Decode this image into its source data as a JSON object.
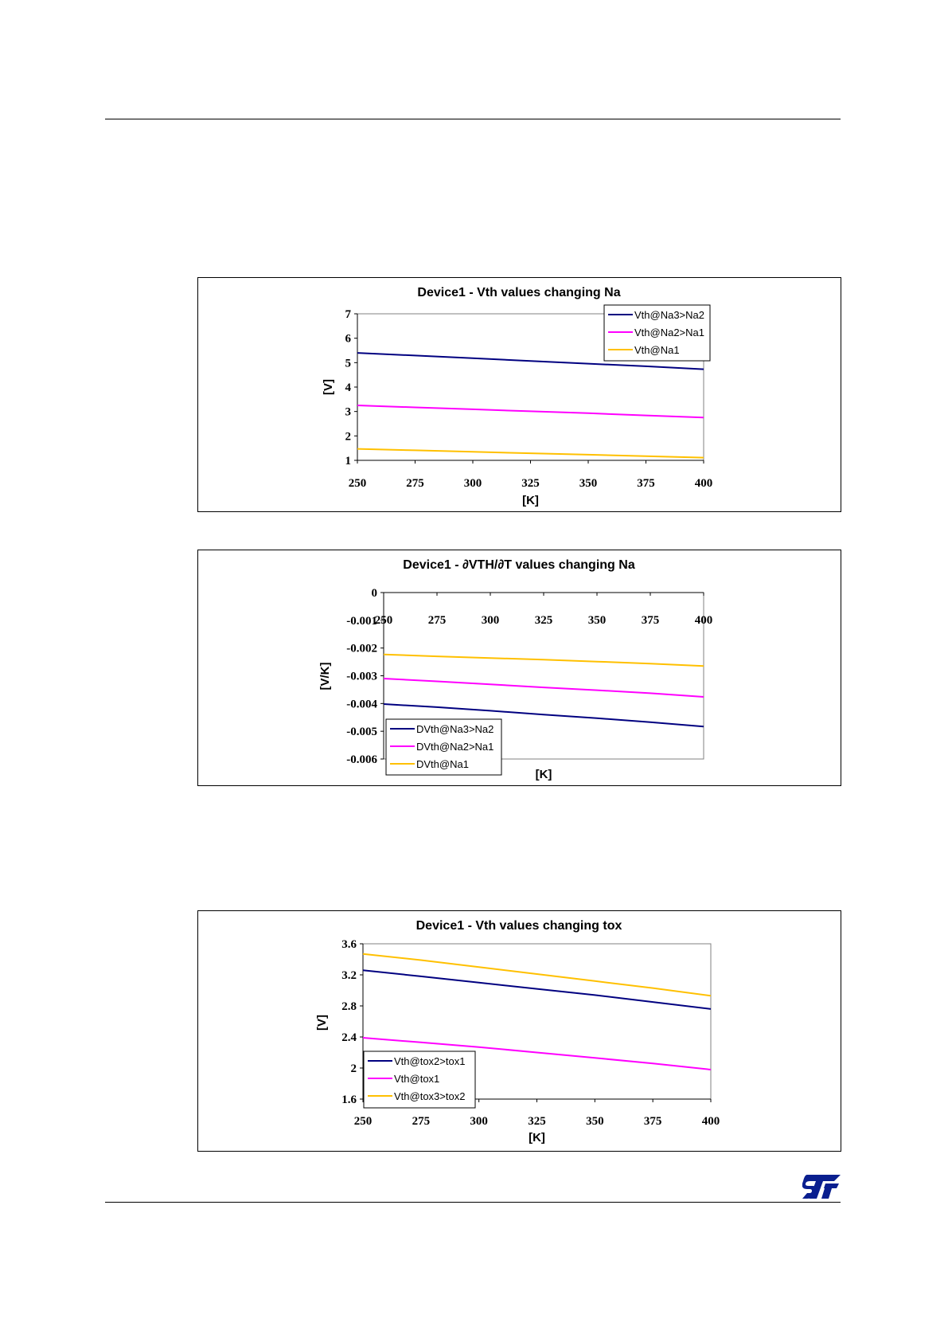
{
  "logo": {
    "name": "st-logo",
    "color": "#0a1f8f"
  },
  "colors": {
    "navy": "#000080",
    "magenta": "#ff00ff",
    "yellow": "#ffc000"
  },
  "chart_data": [
    {
      "type": "line",
      "title": "Device1 - Vth values changing Na",
      "xlabel": "[K]",
      "ylabel": "[V]",
      "x": [
        250,
        275,
        300,
        325,
        350,
        375,
        400
      ],
      "xlim": [
        250,
        400
      ],
      "ylim": [
        1,
        7
      ],
      "yticks": [
        "1",
        "2",
        "3",
        "4",
        "5",
        "6",
        "7"
      ],
      "legend": "top-right",
      "grid": false,
      "series": [
        {
          "name": "Vth@Na3>Na2",
          "color": "#000080",
          "values": [
            5.4,
            5.29,
            5.18,
            5.07,
            4.96,
            4.85,
            4.73
          ]
        },
        {
          "name": "Vth@Na2>Na1",
          "color": "#ff00ff",
          "values": [
            3.25,
            3.17,
            3.09,
            3.01,
            2.93,
            2.84,
            2.75
          ]
        },
        {
          "name": "Vth@Na1",
          "color": "#ffc000",
          "values": [
            1.47,
            1.41,
            1.35,
            1.29,
            1.23,
            1.17,
            1.11
          ]
        }
      ]
    },
    {
      "type": "line",
      "title": "Device1 - ∂VTH/∂T values changing Na",
      "xlabel": "[K]",
      "ylabel": "[V/K]",
      "x": [
        250,
        275,
        300,
        325,
        350,
        375,
        400
      ],
      "xlim": [
        250,
        400
      ],
      "ylim": [
        -0.006,
        0
      ],
      "yticks": [
        "0",
        "-0.001",
        "-0.002",
        "-0.003",
        "-0.004",
        "-0.005",
        "-0.006"
      ],
      "legend": "bottom-left",
      "grid": false,
      "series": [
        {
          "name": "DVth@Na3>Na2",
          "color": "#000080",
          "values": [
            -0.00402,
            -0.00413,
            -0.00426,
            -0.0044,
            -0.00453,
            -0.00467,
            -0.00483
          ]
        },
        {
          "name": "DVth@Na2>Na1",
          "color": "#ff00ff",
          "values": [
            -0.0031,
            -0.0032,
            -0.00331,
            -0.00342,
            -0.00352,
            -0.00363,
            -0.00376
          ]
        },
        {
          "name": "DVth@Na1",
          "color": "#ffc000",
          "values": [
            -0.00223,
            -0.0023,
            -0.00236,
            -0.00242,
            -0.00249,
            -0.00256,
            -0.00265
          ]
        }
      ]
    },
    {
      "type": "line",
      "title": "Device1 - Vth values changing tox",
      "xlabel": "[K]",
      "ylabel": "[V]",
      "x": [
        250,
        275,
        300,
        325,
        350,
        375,
        400
      ],
      "xlim": [
        250,
        400
      ],
      "ylim": [
        1.6,
        3.6
      ],
      "yticks": [
        "1.6",
        "2",
        "2.4",
        "2.8",
        "3.2",
        "3.6"
      ],
      "legend": "bottom-left",
      "grid": false,
      "series": [
        {
          "name": "Vth@tox2>tox1",
          "color": "#000080",
          "values": [
            3.26,
            3.18,
            3.1,
            3.02,
            2.94,
            2.85,
            2.76
          ]
        },
        {
          "name": "Vth@tox1",
          "color": "#ff00ff",
          "values": [
            2.39,
            2.33,
            2.27,
            2.2,
            2.13,
            2.06,
            1.98
          ]
        },
        {
          "name": "Vth@tox3>tox2",
          "color": "#ffc000",
          "values": [
            3.47,
            3.39,
            3.3,
            3.21,
            3.12,
            3.03,
            2.93
          ]
        }
      ]
    }
  ]
}
